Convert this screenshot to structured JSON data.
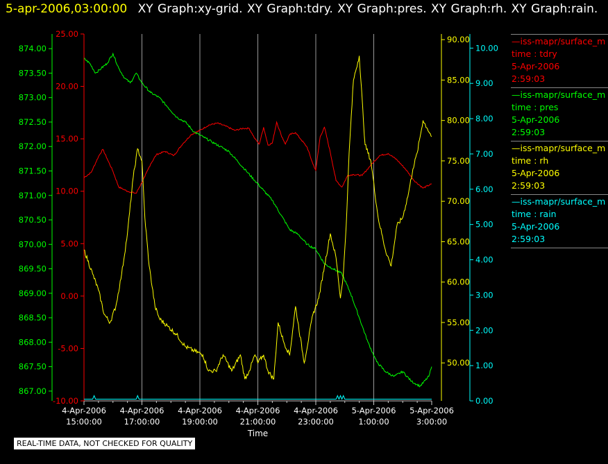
{
  "header": {
    "timestamp": "5-apr-2006,03:00:00",
    "graphs": [
      "XY Graph:xy-grid.",
      "XY Graph:tdry.",
      "XY Graph:pres.",
      "XY Graph:rh.",
      "XY Graph:rain."
    ]
  },
  "legend": [
    {
      "name": "—iss-mapr/surface_m",
      "var": "time : tdry",
      "date": "5-Apr-2006",
      "time": "2:59:03",
      "color": "#ff0000"
    },
    {
      "name": "—iss-mapr/surface_m",
      "var": "time : pres",
      "date": "5-Apr-2006",
      "time": "2:59:03",
      "color": "#00ff00"
    },
    {
      "name": "—iss-mapr/surface_m",
      "var": "time : rh",
      "date": "5-Apr-2006",
      "time": "2:59:03",
      "color": "#ffff00"
    },
    {
      "name": "—iss-mapr/surface_m",
      "var": "time : rain",
      "date": "5-Apr-2006",
      "time": "2:59:03",
      "color": "#00ffff"
    }
  ],
  "note": "REAL-TIME DATA, NOT CHECKED FOR QUALITY",
  "chart_data": {
    "type": "line",
    "xlabel": "Time",
    "x_ticks": [
      {
        "hour": 15,
        "date": "4-Apr-2006",
        "time": "15:00:00"
      },
      {
        "hour": 17,
        "date": "4-Apr-2006",
        "time": "17:00:00"
      },
      {
        "hour": 19,
        "date": "4-Apr-2006",
        "time": "19:00:00"
      },
      {
        "hour": 21,
        "date": "4-Apr-2006",
        "time": "21:00:00"
      },
      {
        "hour": 23,
        "date": "4-Apr-2006",
        "time": "23:00:00"
      },
      {
        "hour": 25,
        "date": "5-Apr-2006",
        "time": "1:00:00"
      },
      {
        "hour": 27,
        "date": "5-Apr-2006",
        "time": "3:00:00"
      }
    ],
    "xlim": [
      15,
      27
    ],
    "grid": "vertical lines at major ticks",
    "axes": {
      "pres": {
        "side": "outer-left",
        "color": "#00ff00",
        "ylim": [
          866.8,
          874.3
        ],
        "ticks": [
          "867.00",
          "867.50",
          "868.00",
          "868.50",
          "869.00",
          "869.50",
          "870.00",
          "870.50",
          "871.00",
          "871.50",
          "872.00",
          "872.50",
          "873.00",
          "873.50",
          "874.00"
        ]
      },
      "tdry": {
        "side": "inner-left",
        "color": "#ff0000",
        "ylim": [
          -10,
          25
        ],
        "ticks": [
          "-10.00",
          "-5.00",
          "0.00",
          "5.00",
          "10.00",
          "15.00",
          "20.00",
          "25.00"
        ]
      },
      "rh": {
        "side": "inner-right",
        "color": "#ffff00",
        "ylim": [
          45.3,
          90.7
        ],
        "ticks": [
          "50.00",
          "55.00",
          "60.00",
          "65.00",
          "70.00",
          "75.00",
          "80.00",
          "85.00",
          "90.00"
        ]
      },
      "rain": {
        "side": "outer-right",
        "color": "#00ffff",
        "ylim": [
          0,
          10.4
        ],
        "ticks": [
          "0.00",
          "1.00",
          "2.00",
          "3.00",
          "4.00",
          "5.00",
          "6.00",
          "7.00",
          "8.00",
          "9.00",
          "10.00"
        ]
      }
    },
    "series": [
      {
        "name": "time : tdry",
        "axis": "tdry",
        "color": "#ff0000",
        "x": [
          15,
          15.25,
          15.5,
          15.65,
          15.8,
          16,
          16.2,
          16.5,
          16.8,
          17.1,
          17.3,
          17.5,
          17.8,
          18.1,
          18.4,
          18.7,
          19,
          19.3,
          19.6,
          19.9,
          20.2,
          20.5,
          20.7,
          20.9,
          21.05,
          21.2,
          21.35,
          21.5,
          21.65,
          21.8,
          21.95,
          22.1,
          22.3,
          22.5,
          22.7,
          22.9,
          23,
          23.15,
          23.3,
          23.5,
          23.7,
          23.9,
          24.1,
          24.3,
          24.6,
          24.9,
          25.2,
          25.5,
          25.8,
          26.1,
          26.4,
          26.7,
          27
        ],
        "y": [
          11.3,
          11.8,
          13.3,
          14,
          13.1,
          11.9,
          10.4,
          10.0,
          9.8,
          11.4,
          12.6,
          13.5,
          13.8,
          13.4,
          14.5,
          15.4,
          15.8,
          16.3,
          16.5,
          16.2,
          15.8,
          16.0,
          16.0,
          15.0,
          14.5,
          16.1,
          14.4,
          14.6,
          16.6,
          15.4,
          14.5,
          15.4,
          15.6,
          14.9,
          14.2,
          12.6,
          12.0,
          15.2,
          16.1,
          13.7,
          11.0,
          10.4,
          11.5,
          11.6,
          11.5,
          12.5,
          13.4,
          13.6,
          13.0,
          12.1,
          11.0,
          10.3,
          10.7
        ]
      },
      {
        "name": "time : pres",
        "axis": "pres",
        "color": "#00ff00",
        "x": [
          15,
          15.2,
          15.4,
          15.6,
          15.8,
          16,
          16.2,
          16.4,
          16.6,
          16.8,
          17,
          17.3,
          17.6,
          17.9,
          18.2,
          18.5,
          18.8,
          19.1,
          19.4,
          19.7,
          20,
          20.3,
          20.6,
          20.9,
          21.2,
          21.5,
          21.8,
          22.1,
          22.4,
          22.7,
          23,
          23.3,
          23.6,
          23.9,
          24.2,
          24.5,
          24.8,
          25.1,
          25.4,
          25.7,
          26,
          26.3,
          26.6,
          26.9,
          27
        ],
        "y": [
          873.8,
          873.7,
          873.5,
          873.6,
          873.7,
          873.9,
          873.6,
          873.4,
          873.3,
          873.5,
          873.3,
          873.1,
          873.0,
          872.8,
          872.6,
          872.5,
          872.3,
          872.2,
          872.1,
          872.0,
          871.9,
          871.7,
          871.5,
          871.3,
          871.1,
          870.9,
          870.6,
          870.3,
          870.2,
          870.0,
          869.9,
          869.6,
          869.5,
          869.4,
          869.0,
          868.5,
          868.0,
          867.6,
          867.4,
          867.3,
          867.4,
          867.2,
          867.1,
          867.3,
          867.5
        ]
      },
      {
        "name": "time : rh",
        "axis": "rh",
        "color": "#ffff00",
        "x": [
          15,
          15.3,
          15.5,
          15.7,
          15.9,
          16.1,
          16.3,
          16.5,
          16.7,
          16.85,
          17,
          17.1,
          17.25,
          17.45,
          17.6,
          17.9,
          18.2,
          18.5,
          18.8,
          19.1,
          19.3,
          19.55,
          19.8,
          20.1,
          20.4,
          20.55,
          20.7,
          20.9,
          21,
          21.2,
          21.35,
          21.55,
          21.7,
          21.9,
          22.1,
          22.3,
          22.6,
          22.9,
          23.1,
          23.3,
          23.5,
          23.7,
          23.85,
          23.95,
          24.05,
          24.15,
          24.3,
          24.5,
          24.7,
          24.9,
          25.15,
          25.4,
          25.6,
          25.8,
          26,
          26.2,
          26.35,
          26.5,
          26.7,
          26.85,
          27
        ],
        "y": [
          64,
          61,
          59,
          56,
          55,
          57,
          61,
          66,
          73,
          76.5,
          75,
          68,
          62,
          57,
          55.5,
          54.5,
          53.5,
          52,
          51.5,
          51,
          49,
          49,
          51,
          49,
          51,
          48,
          49,
          51,
          50,
          51,
          49,
          48,
          55,
          52.5,
          51,
          57,
          50,
          56,
          58,
          62,
          66,
          63,
          58,
          61,
          67,
          76,
          85,
          88,
          77,
          75,
          68,
          64,
          62,
          67,
          68,
          71,
          74,
          76,
          80,
          79,
          78
        ]
      },
      {
        "name": "time : rain",
        "axis": "rain",
        "color": "#00ffff",
        "x": [
          15,
          15.3,
          15.35,
          15.4,
          16.8,
          16.85,
          16.9,
          23.7,
          23.75,
          23.8,
          23.85,
          23.9,
          23.95,
          24,
          27
        ],
        "y": [
          0.05,
          0.05,
          0.15,
          0.05,
          0.05,
          0.15,
          0.05,
          0.05,
          0.15,
          0.05,
          0.15,
          0.05,
          0.15,
          0.05,
          0.05
        ]
      }
    ]
  }
}
